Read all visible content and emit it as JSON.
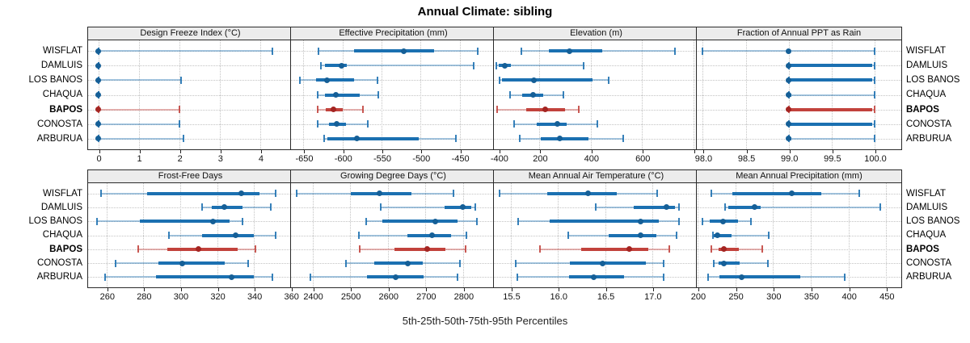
{
  "title": "Annual Climate: sibling",
  "caption": "5th-25th-50th-75th-95th Percentiles",
  "stations": [
    "WISFLAT",
    "DAMLUIS",
    "LOS BANOS",
    "CHAQUA",
    "BAPOS",
    "CONOSTA",
    "ARBURUA"
  ],
  "highlight_station": "BAPOS",
  "percentile_labels": [
    "5th",
    "25th",
    "50th",
    "75th",
    "95th"
  ],
  "colors": {
    "blue": "#1b70b1",
    "blue_dot": "#155f97",
    "blue_tail": "rgba(27,112,177,0.40)",
    "blue_cap": "rgba(27,112,177,0.88)",
    "red": "#c2423c",
    "red_dot": "#a42522",
    "red_tail": "rgba(194,66,60,0.40)",
    "red_cap": "rgba(194,66,60,0.88)",
    "grid": "#c3c3c3",
    "panel_header_bg": "#ececec",
    "panel_border": "#2a2a2a"
  },
  "chart_data": [
    {
      "type": "dotplot-percentile",
      "row": 0,
      "title": "Design Freeze Index (°C)",
      "xlim": [
        -0.25,
        4.8
      ],
      "tick_values": [
        0,
        1,
        2,
        3,
        4
      ],
      "tick_labels": [
        "0",
        "1",
        "2",
        "3",
        "4"
      ],
      "values": [
        [
          0,
          0,
          0,
          0,
          4.3
        ],
        [
          0,
          0,
          0,
          0,
          0
        ],
        [
          0,
          0,
          0,
          0,
          2.05
        ],
        [
          0,
          0,
          0,
          0,
          0
        ],
        [
          0,
          0,
          0,
          0,
          2.0
        ],
        [
          0,
          0,
          0,
          0,
          2.0
        ],
        [
          0,
          0,
          0,
          0,
          2.1
        ]
      ]
    },
    {
      "type": "dotplot-percentile",
      "row": 0,
      "title": "Effective Precipitation (mm)",
      "xlim": [
        -666,
        -404
      ],
      "tick_values": [
        -650,
        -600,
        -550,
        -500,
        -450,
        -400
      ],
      "tick_labels": [
        "-650",
        "-600",
        "-550",
        "-500",
        "-450",
        "-400"
      ],
      "values": [
        [
          -631,
          -585,
          -522,
          -483,
          -427
        ],
        [
          -628,
          -622,
          -601,
          -595,
          -432
        ],
        [
          -655,
          -634,
          -620,
          -585,
          -555
        ],
        [
          -632,
          -623,
          -609,
          -578,
          -554
        ],
        [
          -632,
          -621,
          -612,
          -600,
          -574
        ],
        [
          -632,
          -617,
          -607,
          -596,
          -568
        ],
        [
          -624,
          -619,
          -582,
          -502,
          -455
        ]
      ]
    },
    {
      "type": "dotplot-percentile",
      "row": 0,
      "title": "Elevation (m)",
      "xlim": [
        22,
        820
      ],
      "tick_values": [
        200,
        400,
        600,
        800
      ],
      "tick_labels": [
        "200",
        "400",
        "600",
        ""
      ],
      "values": [
        [
          130,
          236,
          318,
          444,
          728
        ],
        [
          31,
          40,
          64,
          87,
          372
        ],
        [
          43,
          55,
          179,
          407,
          470
        ],
        [
          85,
          132,
          175,
          213,
          293
        ],
        [
          34,
          149,
          223,
          300,
          353
        ],
        [
          100,
          188,
          271,
          305,
          426
        ],
        [
          124,
          206,
          279,
          391,
          527
        ]
      ]
    },
    {
      "type": "dotplot-percentile",
      "row": 0,
      "title": "Fraction of Annual PPT as Rain",
      "xlim": [
        97.93,
        100.31
      ],
      "tick_values": [
        98.0,
        98.5,
        99.0,
        99.5,
        100.0
      ],
      "tick_labels": [
        "98.0",
        "98.5",
        "99.0",
        "99.5",
        "100.0"
      ],
      "values": [
        [
          98.0,
          98.98,
          99.0,
          99.02,
          100.0
        ],
        [
          99.0,
          99.0,
          99.0,
          99.97,
          100.0
        ],
        [
          99.0,
          99.0,
          99.0,
          99.97,
          100.0
        ],
        [
          99.0,
          99.0,
          99.0,
          99.03,
          100.0
        ],
        [
          99.0,
          99.0,
          99.0,
          99.97,
          100.0
        ],
        [
          99.0,
          99.0,
          99.0,
          99.97,
          100.0
        ],
        [
          99.0,
          99.0,
          99.0,
          99.03,
          100.0
        ]
      ]
    },
    {
      "type": "dotplot-percentile",
      "row": 1,
      "title": "Frost-Free Days",
      "xlim": [
        250,
        361
      ],
      "tick_values": [
        260,
        280,
        300,
        320,
        340,
        360
      ],
      "tick_labels": [
        "260",
        "280",
        "300",
        "320",
        "340",
        "360"
      ],
      "values": [
        [
          257,
          282,
          333,
          343,
          352
        ],
        [
          312,
          317,
          324,
          334,
          349
        ],
        [
          255,
          278,
          318,
          327,
          334
        ],
        [
          294,
          312,
          330,
          340,
          352
        ],
        [
          277,
          293,
          310,
          331,
          341
        ],
        [
          265,
          288,
          301,
          324,
          337
        ],
        [
          259,
          287,
          328,
          340,
          350
        ]
      ]
    },
    {
      "type": "dotplot-percentile",
      "row": 1,
      "title": "Growing Degree Days (°C)",
      "xlim": [
        2343,
        2886
      ],
      "tick_values": [
        2400,
        2500,
        2600,
        2700,
        2800
      ],
      "tick_labels": [
        "2400",
        "2500",
        "2600",
        "2700",
        "2800"
      ],
      "values": [
        [
          2358,
          2502,
          2578,
          2662,
          2774
        ],
        [
          2582,
          2750,
          2800,
          2822,
          2832
        ],
        [
          2542,
          2585,
          2726,
          2785,
          2836
        ],
        [
          2524,
          2651,
          2718,
          2767,
          2809
        ],
        [
          2526,
          2618,
          2704,
          2753,
          2806
        ],
        [
          2489,
          2564,
          2653,
          2693,
          2791
        ],
        [
          2395,
          2545,
          2620,
          2694,
          2785
        ]
      ]
    },
    {
      "type": "dotplot-percentile",
      "row": 1,
      "title": "Mean Annual Air Temperature (°C)",
      "xlim": [
        15.32,
        17.49
      ],
      "tick_values": [
        15.5,
        16.0,
        16.5,
        17.0
      ],
      "tick_labels": [
        "15.5",
        "16.0",
        "16.5",
        "17.0"
      ],
      "values": [
        [
          15.38,
          15.89,
          16.32,
          16.62,
          17.05
        ],
        [
          16.4,
          16.8,
          17.15,
          17.24,
          17.28
        ],
        [
          15.58,
          15.91,
          16.88,
          17.07,
          17.28
        ],
        [
          16.11,
          16.54,
          16.88,
          17.04,
          17.26
        ],
        [
          15.81,
          16.25,
          16.76,
          16.96,
          17.18
        ],
        [
          15.55,
          16.13,
          16.47,
          16.93,
          17.12
        ],
        [
          15.57,
          16.12,
          16.38,
          16.7,
          17.12
        ]
      ]
    },
    {
      "type": "dotplot-percentile",
      "row": 1,
      "title": "Mean Annual Precipitation (mm)",
      "xlim": [
        199,
        470
      ],
      "tick_values": [
        200,
        250,
        300,
        350,
        400,
        450
      ],
      "tick_labels": [
        "200",
        "250",
        "300",
        "350",
        "400",
        "450"
      ],
      "values": [
        [
          218,
          246,
          325,
          364,
          414
        ],
        [
          236,
          241,
          276,
          284,
          442
        ],
        [
          206,
          216,
          234,
          254,
          271
        ],
        [
          220,
          222,
          226,
          245,
          294
        ],
        [
          218,
          228,
          235,
          255,
          286
        ],
        [
          221,
          228,
          235,
          256,
          293
        ],
        [
          214,
          229,
          258,
          336,
          395
        ]
      ]
    }
  ]
}
